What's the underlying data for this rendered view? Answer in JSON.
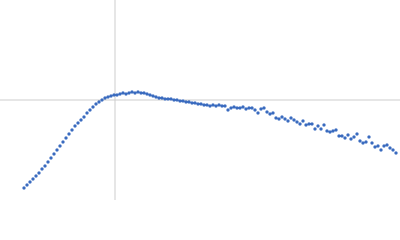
{
  "chart_data": {
    "type": "scatter",
    "x": [
      -91,
      -88,
      -85,
      -82,
      -79,
      -76,
      -73,
      -70,
      -67,
      -64,
      -61,
      -58,
      -55,
      -52,
      -49,
      -46,
      -43,
      -40,
      -37,
      -34,
      -31,
      -28,
      -25,
      -22,
      -19,
      -16,
      -13,
      -10,
      -7,
      -4,
      -1,
      2,
      5,
      8,
      11,
      14,
      17,
      20,
      23,
      26,
      29,
      32,
      35,
      38,
      41,
      44,
      47,
      50,
      53,
      56,
      59,
      62,
      65,
      68,
      71,
      74,
      77,
      80,
      83,
      86,
      89,
      92,
      95,
      98,
      101,
      104,
      107,
      110,
      113,
      116,
      119,
      122,
      125,
      128,
      131,
      134,
      137,
      140,
      143,
      146,
      149,
      152,
      155,
      158,
      161,
      164,
      167,
      170,
      173,
      176,
      179,
      182,
      185,
      188,
      191,
      194,
      197,
      200,
      203,
      206,
      209,
      212,
      215,
      218,
      221,
      224,
      227,
      230,
      233,
      236,
      239,
      242,
      245,
      248,
      251,
      254,
      257,
      260,
      263,
      266,
      269,
      272,
      275,
      278,
      281
    ],
    "values": [
      -88,
      -85,
      -82,
      -79,
      -76,
      -73,
      -69,
      -66,
      -62,
      -58,
      -54,
      -50,
      -46,
      -42,
      -38,
      -34,
      -30,
      -26,
      -23,
      -20,
      -17,
      -13,
      -10,
      -7,
      -4,
      -2,
      0,
      2,
      3,
      4,
      5,
      5,
      6,
      7,
      6,
      7,
      8,
      7,
      8,
      7,
      7,
      6,
      5,
      4,
      3,
      2,
      2,
      1,
      1,
      1,
      0,
      0,
      -1,
      -1,
      -2,
      -2,
      -3,
      -3,
      -4,
      -4,
      -5,
      -5,
      -6,
      -5,
      -6,
      -5,
      -6,
      -6,
      -10,
      -8,
      -7,
      -8,
      -8,
      -7,
      -9,
      -8,
      -8,
      -10,
      -13,
      -9,
      -8,
      -12,
      -14,
      -13,
      -18,
      -19,
      -17,
      -19,
      -21,
      -18,
      -20,
      -22,
      -24,
      -21,
      -25,
      -24,
      -24,
      -29,
      -26,
      -29,
      -25,
      -31,
      -32,
      -31,
      -30,
      -36,
      -36,
      -38,
      -35,
      -39,
      -37,
      -34,
      -41,
      -43,
      -42,
      -37,
      -43,
      -47,
      -46,
      -50,
      -46,
      -45,
      -48,
      -50,
      -53
    ],
    "color": "#3a6bbf",
    "xlim": [
      -115,
      285
    ],
    "ylim": [
      -100,
      100
    ],
    "zero_lines": true
  }
}
